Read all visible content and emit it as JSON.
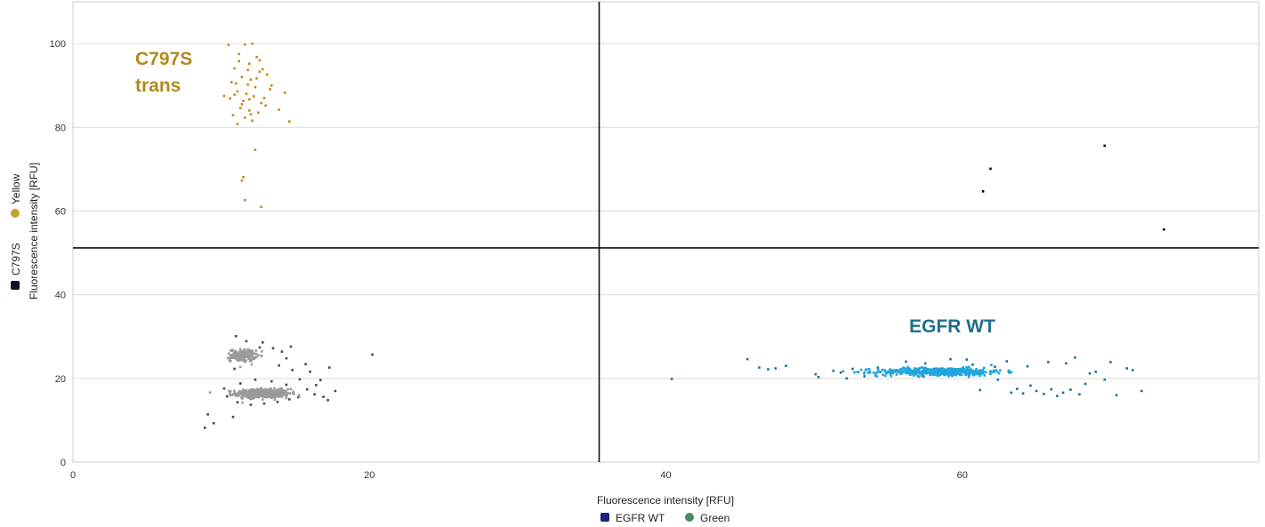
{
  "chart_data": {
    "type": "scatter",
    "title": "",
    "xlabel": "Fluorescence intensity [RFU]",
    "ylabel": "Fluorescence intensity [RFU]",
    "xlim": [
      0,
      80
    ],
    "ylim": [
      0,
      110
    ],
    "x_ticks": [
      0,
      20,
      40,
      60
    ],
    "y_ticks": [
      0,
      20,
      40,
      60,
      80,
      100
    ],
    "grid": "horizontal",
    "thresholds": {
      "x": 35.5,
      "y": 51.2
    },
    "x_legend": [
      {
        "label": "EGFR WT",
        "color": "#1a237e",
        "marker": "square"
      },
      {
        "label": "Green",
        "color": "#4a8a63",
        "marker": "circle"
      }
    ],
    "y_legend": [
      {
        "label": "C797S",
        "color": "#0d0d2b",
        "marker": "square"
      },
      {
        "label": "Yellow",
        "color": "#c9a227",
        "marker": "circle"
      }
    ],
    "annotations": [
      {
        "text": "C797S",
        "color": "#b08a1e"
      },
      {
        "text": "trans",
        "color": "#b08a1e"
      },
      {
        "text": "EGFR WT",
        "color": "#1f6f8b"
      }
    ],
    "series": [
      {
        "color": "#c8871c",
        "points": [
          [
            10.5,
            99.7
          ],
          [
            11.6,
            99.8
          ],
          [
            12.1,
            100
          ],
          [
            11.2,
            97.5
          ],
          [
            12.4,
            96.8
          ],
          [
            11.9,
            95.2
          ],
          [
            10.9,
            94.1
          ],
          [
            12.6,
            93.3
          ],
          [
            13.1,
            92.6
          ],
          [
            11.4,
            92.0
          ],
          [
            12.0,
            91.4
          ],
          [
            10.7,
            90.8
          ],
          [
            11.8,
            90.2
          ],
          [
            12.3,
            89.6
          ],
          [
            13.3,
            89.1
          ],
          [
            11.1,
            88.6
          ],
          [
            11.7,
            88.0
          ],
          [
            12.2,
            87.4
          ],
          [
            10.6,
            86.9
          ],
          [
            11.5,
            86.3
          ],
          [
            12.7,
            85.8
          ],
          [
            13.0,
            85.2
          ],
          [
            11.3,
            84.6
          ],
          [
            11.9,
            84.0
          ],
          [
            12.5,
            83.5
          ],
          [
            10.8,
            82.9
          ],
          [
            11.6,
            82.3
          ],
          [
            12.1,
            81.6
          ],
          [
            14.3,
            88.3
          ],
          [
            14.6,
            81.4
          ],
          [
            13.9,
            84.2
          ],
          [
            12.8,
            93.9
          ],
          [
            11.0,
            90.5
          ],
          [
            12.9,
            87.0
          ],
          [
            11.4,
            85.5
          ],
          [
            10.9,
            87.8
          ],
          [
            12.4,
            91.7
          ],
          [
            11.8,
            93.7
          ],
          [
            11.2,
            95.8
          ],
          [
            12.0,
            83.1
          ],
          [
            12.3,
            74.6
          ],
          [
            11.5,
            68.1
          ],
          [
            11.4,
            67.3
          ],
          [
            11.6,
            62.6
          ],
          [
            12.7,
            61.0
          ],
          [
            10.2,
            87.5
          ],
          [
            11.1,
            80.8
          ],
          [
            12.6,
            96.0
          ],
          [
            13.4,
            90.0
          ],
          [
            11.9,
            86.7
          ]
        ]
      },
      {
        "color": "#000000",
        "points": [
          [
            61.4,
            64.7
          ],
          [
            61.9,
            70.1
          ],
          [
            69.6,
            75.6
          ],
          [
            73.6,
            55.6
          ]
        ]
      },
      {
        "color": "#4a4a4a",
        "points": [
          [
            8.9,
            8.2
          ],
          [
            9.1,
            11.4
          ],
          [
            9.5,
            9.3
          ],
          [
            10.8,
            10.8
          ],
          [
            11.0,
            30.1
          ],
          [
            11.7,
            28.9
          ],
          [
            12.8,
            28.6
          ],
          [
            13.5,
            27.2
          ],
          [
            14.1,
            26.4
          ],
          [
            14.7,
            27.6
          ],
          [
            14.4,
            24.8
          ],
          [
            13.9,
            23.1
          ],
          [
            14.8,
            22.0
          ],
          [
            15.7,
            23.4
          ],
          [
            16.0,
            21.6
          ],
          [
            16.7,
            19.6
          ],
          [
            17.3,
            22.6
          ],
          [
            16.4,
            18.4
          ],
          [
            15.8,
            17.4
          ],
          [
            16.3,
            16.2
          ],
          [
            16.9,
            15.6
          ],
          [
            17.2,
            14.8
          ],
          [
            17.7,
            17.0
          ],
          [
            15.2,
            15.5
          ],
          [
            14.6,
            15.0
          ],
          [
            13.8,
            14.4
          ],
          [
            12.9,
            14.0
          ],
          [
            12.0,
            13.7
          ],
          [
            11.1,
            14.3
          ],
          [
            10.4,
            15.7
          ],
          [
            10.2,
            17.6
          ],
          [
            11.3,
            18.8
          ],
          [
            12.3,
            19.7
          ],
          [
            13.4,
            19.3
          ],
          [
            14.4,
            18.5
          ],
          [
            20.2,
            25.7
          ],
          [
            10.6,
            24.2
          ],
          [
            10.9,
            22.3
          ],
          [
            12.6,
            27.4
          ],
          [
            15.3,
            19.8
          ]
        ]
      },
      {
        "color": "#9a9a9a",
        "clusters": [
          {
            "center": [
              12.8,
              16.4
            ],
            "spread": [
              1.6,
              0.95
            ],
            "count": 520
          },
          {
            "center": [
              11.5,
              25.5
            ],
            "spread": [
              0.75,
              1.3
            ],
            "count": 170
          }
        ]
      },
      {
        "color": "#1f6fa0",
        "points": [
          [
            40.4,
            19.9
          ],
          [
            45.5,
            24.6
          ],
          [
            46.3,
            22.6
          ],
          [
            46.9,
            22.2
          ],
          [
            47.4,
            22.4
          ],
          [
            48.1,
            23.0
          ],
          [
            50.1,
            21.0
          ],
          [
            50.3,
            20.3
          ],
          [
            51.3,
            21.8
          ],
          [
            51.8,
            21.4
          ],
          [
            52.2,
            20.0
          ],
          [
            52.6,
            22.3
          ],
          [
            53.4,
            20.5
          ],
          [
            54.3,
            22.6
          ],
          [
            55.6,
            21.8
          ],
          [
            56.2,
            24.0
          ],
          [
            57.4,
            20.5
          ],
          [
            58.1,
            22.3
          ],
          [
            60.3,
            24.5
          ],
          [
            61.2,
            17.2
          ],
          [
            62.4,
            19.7
          ],
          [
            63.3,
            16.6
          ],
          [
            63.7,
            17.5
          ],
          [
            64.1,
            16.4
          ],
          [
            64.6,
            18.3
          ],
          [
            65.0,
            17.0
          ],
          [
            65.5,
            16.3
          ],
          [
            66.0,
            17.4
          ],
          [
            66.4,
            15.8
          ],
          [
            66.8,
            16.6
          ],
          [
            67.3,
            17.3
          ],
          [
            67.9,
            16.2
          ],
          [
            68.3,
            18.7
          ],
          [
            69.0,
            21.6
          ],
          [
            69.6,
            19.7
          ],
          [
            70.0,
            23.9
          ],
          [
            70.4,
            16.0
          ],
          [
            71.1,
            22.4
          ],
          [
            71.5,
            22.0
          ],
          [
            72.1,
            17.0
          ],
          [
            67.6,
            25.0
          ],
          [
            67.0,
            23.6
          ],
          [
            68.6,
            21.2
          ],
          [
            65.8,
            23.9
          ],
          [
            64.4,
            22.9
          ],
          [
            63.0,
            24.1
          ],
          [
            62.2,
            22.8
          ],
          [
            60.7,
            23.3
          ],
          [
            59.2,
            24.6
          ],
          [
            57.5,
            23.6
          ]
        ]
      },
      {
        "color": "#22a6dc",
        "clusters": [
          {
            "center": [
              58.5,
              21.6
            ],
            "spread": [
              3.8,
              0.85
            ],
            "count": 520
          }
        ]
      }
    ]
  }
}
